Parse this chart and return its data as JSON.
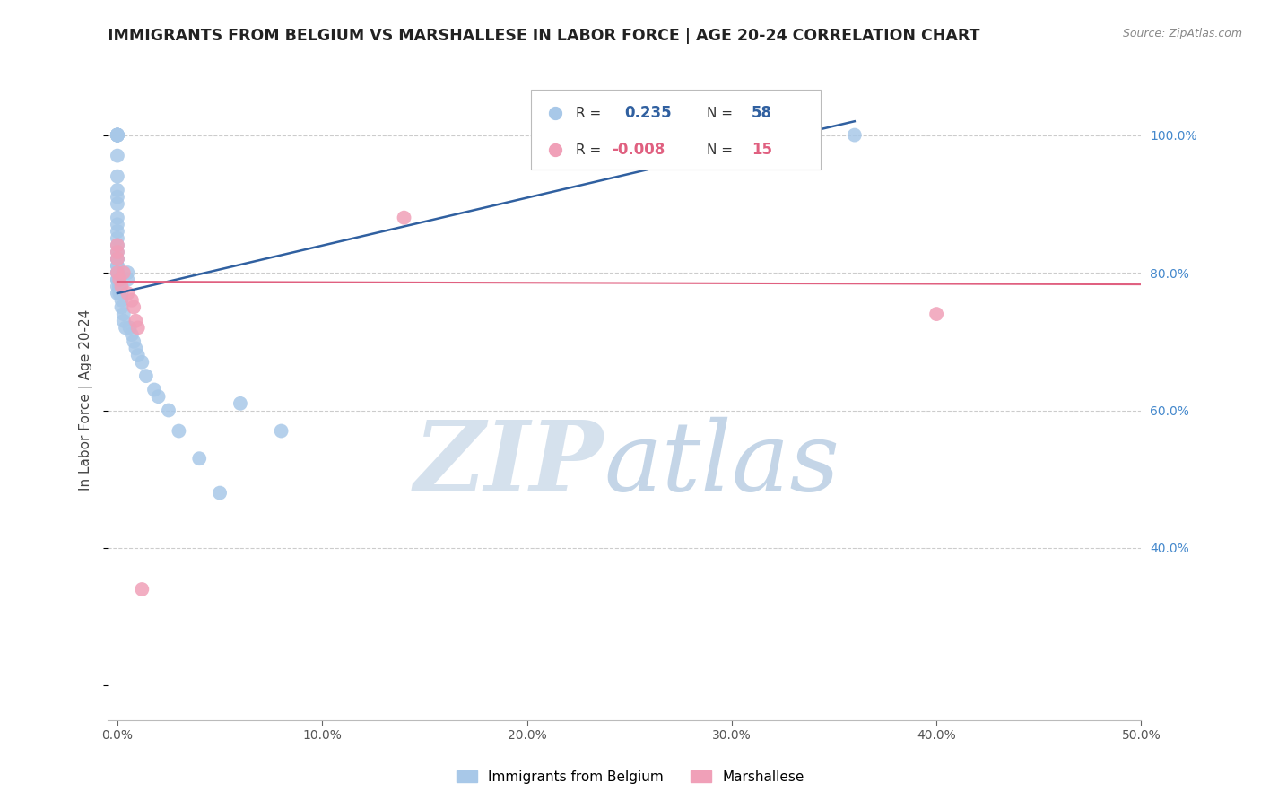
{
  "title": "IMMIGRANTS FROM BELGIUM VS MARSHALLESE IN LABOR FORCE | AGE 20-24 CORRELATION CHART",
  "source": "Source: ZipAtlas.com",
  "ylabel": "In Labor Force | Age 20-24",
  "xlabel_ticks": [
    "0.0%",
    "10.0%",
    "20.0%",
    "30.0%",
    "40.0%",
    "50.0%"
  ],
  "xlabel_vals": [
    0.0,
    0.1,
    0.2,
    0.3,
    0.4,
    0.5
  ],
  "ylabel_ticks": [
    "100.0%",
    "80.0%",
    "60.0%",
    "40.0%"
  ],
  "ylabel_vals": [
    1.0,
    0.8,
    0.6,
    0.4
  ],
  "ylim": [
    0.15,
    1.08
  ],
  "xlim": [
    -0.005,
    0.5
  ],
  "blue_R": 0.235,
  "blue_N": 58,
  "pink_R": -0.008,
  "pink_N": 15,
  "legend_label_blue": "Immigrants from Belgium",
  "legend_label_pink": "Marshallese",
  "blue_color": "#A8C8E8",
  "pink_color": "#F0A0B8",
  "blue_line_color": "#3060A0",
  "pink_line_color": "#E06080",
  "grid_color": "#cccccc",
  "title_color": "#222222",
  "source_color": "#888888",
  "ylabel_color": "#444444",
  "right_tick_color": "#4488CC",
  "blue_x": [
    0.0,
    0.0,
    0.0,
    0.0,
    0.0,
    0.0,
    0.0,
    0.0,
    0.0,
    0.0,
    0.0,
    0.0,
    0.0,
    0.0,
    0.0,
    0.0,
    0.0,
    0.0,
    0.0,
    0.0,
    0.0,
    0.0,
    0.0,
    0.0,
    0.0,
    0.0,
    0.0,
    0.0,
    0.0,
    0.0,
    0.001,
    0.001,
    0.001,
    0.002,
    0.002,
    0.002,
    0.003,
    0.003,
    0.004,
    0.005,
    0.005,
    0.006,
    0.007,
    0.008,
    0.009,
    0.01,
    0.012,
    0.014,
    0.018,
    0.02,
    0.025,
    0.03,
    0.04,
    0.05,
    0.06,
    0.08,
    0.3,
    0.36
  ],
  "blue_y": [
    1.0,
    1.0,
    1.0,
    1.0,
    1.0,
    1.0,
    1.0,
    1.0,
    0.97,
    0.94,
    0.92,
    0.91,
    0.9,
    0.88,
    0.87,
    0.86,
    0.85,
    0.84,
    0.83,
    0.82,
    0.82,
    0.81,
    0.81,
    0.8,
    0.8,
    0.8,
    0.79,
    0.79,
    0.78,
    0.77,
    0.78,
    0.78,
    0.77,
    0.77,
    0.76,
    0.75,
    0.74,
    0.73,
    0.72,
    0.8,
    0.79,
    0.72,
    0.71,
    0.7,
    0.69,
    0.68,
    0.67,
    0.65,
    0.63,
    0.62,
    0.6,
    0.57,
    0.53,
    0.48,
    0.61,
    0.57,
    1.0,
    1.0
  ],
  "pink_x": [
    0.0,
    0.0,
    0.0,
    0.0,
    0.001,
    0.002,
    0.003,
    0.005,
    0.007,
    0.008,
    0.009,
    0.01,
    0.012,
    0.14,
    0.4
  ],
  "pink_y": [
    0.84,
    0.83,
    0.82,
    0.8,
    0.79,
    0.78,
    0.8,
    0.77,
    0.76,
    0.75,
    0.73,
    0.72,
    0.34,
    0.88,
    0.74
  ],
  "blue_line_x0": 0.0,
  "blue_line_x1": 0.36,
  "blue_line_y0": 0.77,
  "blue_line_y1": 1.02,
  "pink_line_x0": 0.0,
  "pink_line_x1": 0.5,
  "pink_line_y0": 0.787,
  "pink_line_y1": 0.783,
  "watermark_zip": "ZIP",
  "watermark_atlas": "atlas"
}
